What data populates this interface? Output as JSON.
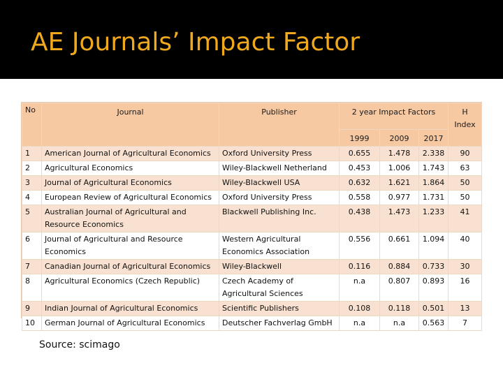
{
  "slide": {
    "title": "AE Journals’ Impact Factor",
    "source": "Source: scimago"
  },
  "table": {
    "headers": {
      "no": "No",
      "journal": "Journal",
      "publisher": "Publisher",
      "impact": "2 year Impact Factors",
      "hindex": "H Index",
      "y1999": "1999",
      "y2009": "2009",
      "y2017": "2017"
    },
    "rows": [
      {
        "no": "1",
        "journal": "American Journal of Agricultural Economics",
        "publisher": "Oxford University Press",
        "if1999": "0.655",
        "if2009": "1.478",
        "if2017": "2.338",
        "h": "90"
      },
      {
        "no": "2",
        "journal": "Agricultural Economics",
        "publisher": "Wiley-Blackwell Netherland",
        "if1999": "0.453",
        "if2009": "1.006",
        "if2017": "1.743",
        "h": "63"
      },
      {
        "no": "3",
        "journal": "Journal of Agricultural Economics",
        "publisher": "Wiley-Blackwell USA",
        "if1999": "0.632",
        "if2009": "1.621",
        "if2017": "1.864",
        "h": "50"
      },
      {
        "no": "4",
        "journal": "European Review of Agricultural Economics",
        "publisher": "Oxford University Press",
        "if1999": "0.558",
        "if2009": "0.977",
        "if2017": "1.731",
        "h": "50"
      },
      {
        "no": "5",
        "journal": "Australian Journal of Agricultural and Resource Economics",
        "publisher": "Blackwell Publishing Inc.",
        "if1999": "0.438",
        "if2009": "1.473",
        "if2017": "1.233",
        "h": "41"
      },
      {
        "no": "6",
        "journal": "Journal of Agricultural and Resource Economics",
        "publisher": "Western Agricultural Economics Association",
        "if1999": "0.556",
        "if2009": "0.661",
        "if2017": "1.094",
        "h": "40"
      },
      {
        "no": "7",
        "journal": "Canadian Journal of Agricultural Economics",
        "publisher": "Wiley-Blackwell",
        "if1999": "0.116",
        "if2009": "0.884",
        "if2017": "0.733",
        "h": "30"
      },
      {
        "no": "8",
        "journal": "Agricultural Economics (Czech Republic)",
        "publisher": "Czech Academy of Agricultural Sciences",
        "if1999": "n.a",
        "if2009": "0.807",
        "if2017": "0.893",
        "h": "16"
      },
      {
        "no": "9",
        "journal": "Indian Journal of Agricultural Economics",
        "publisher": "Scientific Publishers",
        "if1999": "0.108",
        "if2009": "0.118",
        "if2017": "0.501",
        "h": "13"
      },
      {
        "no": "10",
        "journal": "German Journal of Agricultural Economics",
        "publisher": "Deutscher Fachverlag GmbH",
        "if1999": "n.a",
        "if2009": "n.a",
        "if2017": "0.563",
        "h": "7"
      }
    ]
  },
  "colors": {
    "title": "#f0a81c",
    "header_bg": "#f7c9a3",
    "odd_row_bg": "#f8e1d0"
  }
}
